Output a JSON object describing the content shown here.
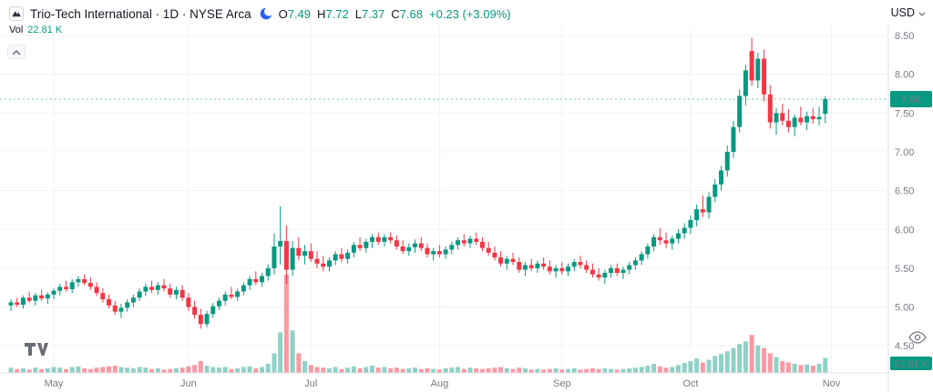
{
  "header": {
    "title": "Trio-Tech International · 1D · NYSE Arca",
    "ohlc": {
      "o_label": "O",
      "o": "7.49",
      "h_label": "H",
      "h": "7.72",
      "l_label": "L",
      "l": "7.37",
      "c_label": "C",
      "c": "7.68",
      "change": "+0.23 (+3.09%)"
    },
    "currency": "USD",
    "volume_label": "Vol",
    "volume_value": "22.81 K"
  },
  "icons": {
    "symbol_logo": "mountain-logo-icon",
    "market_status": "moon-icon",
    "currency_chevron": "chevron-down-icon",
    "collapse": "chevron-up-icon",
    "watermark": "tradingview-logo",
    "pane_toggle": "eye-icon"
  },
  "chart_data": {
    "type": "candlestick",
    "title": "Trio-Tech International",
    "interval": "1D",
    "exchange": "NYSE Arca",
    "currency": "USD",
    "last_price": 7.68,
    "last_price_label": "7.68",
    "last_volume_label": "22.81 K",
    "price_axis": {
      "min": 4.5,
      "max": 8.5,
      "ticks": [
        "8.50",
        "8.00",
        "7.50",
        "7.00",
        "6.50",
        "6.00",
        "5.50",
        "5.00",
        "4.50"
      ]
    },
    "time_axis": {
      "months": [
        {
          "label": "May",
          "index": 7
        },
        {
          "label": "Jun",
          "index": 29
        },
        {
          "label": "Jul",
          "index": 49
        },
        {
          "label": "Aug",
          "index": 70
        },
        {
          "label": "Sep",
          "index": 90
        },
        {
          "label": "Oct",
          "index": 111
        },
        {
          "label": "Nov",
          "index": 134
        }
      ]
    },
    "colors": {
      "up": "#089981",
      "down": "#f23645",
      "vol_up": "rgba(8,153,129,0.45)",
      "vol_down": "rgba(242,54,69,0.5)",
      "grid": "#f2f3f5",
      "axis": "#e0e3eb",
      "tick_text": "#787b86"
    },
    "candles": [
      [
        5.02,
        5.1,
        4.95,
        5.06,
        8
      ],
      [
        5.06,
        5.12,
        5.0,
        5.03,
        6
      ],
      [
        5.03,
        5.15,
        4.98,
        5.12,
        7
      ],
      [
        5.12,
        5.2,
        5.05,
        5.08,
        5
      ],
      [
        5.08,
        5.18,
        5.02,
        5.15,
        8
      ],
      [
        5.15,
        5.22,
        5.08,
        5.11,
        6
      ],
      [
        5.11,
        5.19,
        5.04,
        5.16,
        7
      ],
      [
        5.16,
        5.24,
        5.1,
        5.21,
        9
      ],
      [
        5.21,
        5.3,
        5.15,
        5.26,
        8
      ],
      [
        5.26,
        5.34,
        5.2,
        5.23,
        6
      ],
      [
        5.23,
        5.36,
        5.18,
        5.32,
        9
      ],
      [
        5.32,
        5.4,
        5.26,
        5.36,
        10
      ],
      [
        5.36,
        5.42,
        5.28,
        5.31,
        7
      ],
      [
        5.31,
        5.38,
        5.22,
        5.26,
        6
      ],
      [
        5.26,
        5.32,
        5.14,
        5.18,
        8
      ],
      [
        5.18,
        5.24,
        5.06,
        5.1,
        9
      ],
      [
        5.1,
        5.16,
        4.98,
        5.02,
        10
      ],
      [
        5.02,
        5.08,
        4.9,
        4.94,
        11
      ],
      [
        4.94,
        5.04,
        4.86,
        4.99,
        9
      ],
      [
        4.99,
        5.1,
        4.94,
        5.06,
        8
      ],
      [
        5.06,
        5.16,
        5.0,
        5.12,
        7
      ],
      [
        5.12,
        5.24,
        5.08,
        5.2,
        9
      ],
      [
        5.2,
        5.3,
        5.14,
        5.26,
        8
      ],
      [
        5.26,
        5.34,
        5.18,
        5.22,
        6
      ],
      [
        5.22,
        5.32,
        5.16,
        5.28,
        7
      ],
      [
        5.28,
        5.36,
        5.2,
        5.24,
        5
      ],
      [
        5.24,
        5.3,
        5.12,
        5.16,
        6
      ],
      [
        5.16,
        5.26,
        5.1,
        5.22,
        7
      ],
      [
        5.22,
        5.28,
        5.08,
        5.12,
        8
      ],
      [
        5.12,
        5.18,
        4.95,
        5.0,
        10
      ],
      [
        5.0,
        5.08,
        4.85,
        4.9,
        12
      ],
      [
        4.9,
        4.98,
        4.72,
        4.78,
        18
      ],
      [
        4.78,
        4.95,
        4.74,
        4.91,
        11
      ],
      [
        4.91,
        5.05,
        4.86,
        5.01,
        9
      ],
      [
        5.01,
        5.12,
        4.96,
        5.08,
        8
      ],
      [
        5.08,
        5.2,
        5.02,
        5.16,
        9
      ],
      [
        5.16,
        5.26,
        5.1,
        5.13,
        6
      ],
      [
        5.13,
        5.24,
        5.08,
        5.2,
        7
      ],
      [
        5.2,
        5.32,
        5.15,
        5.28,
        9
      ],
      [
        5.28,
        5.4,
        5.22,
        5.36,
        10
      ],
      [
        5.36,
        5.46,
        5.28,
        5.32,
        7
      ],
      [
        5.32,
        5.44,
        5.26,
        5.4,
        9
      ],
      [
        5.4,
        5.55,
        5.34,
        5.5,
        14
      ],
      [
        5.5,
        5.95,
        5.42,
        5.78,
        30
      ],
      [
        5.78,
        6.3,
        5.55,
        5.85,
        62
      ],
      [
        5.85,
        6.05,
        5.3,
        5.48,
        150
      ],
      [
        5.48,
        5.85,
        5.4,
        5.76,
        65
      ],
      [
        5.76,
        5.9,
        5.6,
        5.66,
        30
      ],
      [
        5.66,
        5.8,
        5.55,
        5.72,
        18
      ],
      [
        5.72,
        5.82,
        5.58,
        5.62,
        12
      ],
      [
        5.62,
        5.72,
        5.5,
        5.56,
        9
      ],
      [
        5.56,
        5.66,
        5.46,
        5.52,
        8
      ],
      [
        5.52,
        5.64,
        5.46,
        5.6,
        7
      ],
      [
        5.6,
        5.72,
        5.54,
        5.68,
        9
      ],
      [
        5.68,
        5.76,
        5.58,
        5.62,
        6
      ],
      [
        5.62,
        5.74,
        5.56,
        5.7,
        8
      ],
      [
        5.7,
        5.84,
        5.64,
        5.8,
        10
      ],
      [
        5.8,
        5.9,
        5.72,
        5.76,
        7
      ],
      [
        5.76,
        5.88,
        5.7,
        5.84,
        9
      ],
      [
        5.84,
        5.94,
        5.76,
        5.9,
        11
      ],
      [
        5.9,
        5.96,
        5.8,
        5.84,
        8
      ],
      [
        5.84,
        5.94,
        5.78,
        5.9,
        9
      ],
      [
        5.9,
        5.96,
        5.82,
        5.86,
        7
      ],
      [
        5.86,
        5.92,
        5.74,
        5.78,
        8
      ],
      [
        5.78,
        5.86,
        5.68,
        5.72,
        6
      ],
      [
        5.72,
        5.82,
        5.66,
        5.77,
        7
      ],
      [
        5.77,
        5.87,
        5.7,
        5.82,
        8
      ],
      [
        5.82,
        5.9,
        5.72,
        5.76,
        6
      ],
      [
        5.76,
        5.82,
        5.64,
        5.68,
        7
      ],
      [
        5.68,
        5.76,
        5.6,
        5.72,
        6
      ],
      [
        5.72,
        5.8,
        5.64,
        5.68,
        5
      ],
      [
        5.68,
        5.78,
        5.62,
        5.74,
        7
      ],
      [
        5.74,
        5.84,
        5.68,
        5.8,
        8
      ],
      [
        5.8,
        5.9,
        5.74,
        5.86,
        9
      ],
      [
        5.86,
        5.94,
        5.78,
        5.82,
        6
      ],
      [
        5.82,
        5.92,
        5.76,
        5.88,
        8
      ],
      [
        5.88,
        5.96,
        5.8,
        5.84,
        7
      ],
      [
        5.84,
        5.9,
        5.72,
        5.76,
        6
      ],
      [
        5.76,
        5.84,
        5.66,
        5.7,
        7
      ],
      [
        5.7,
        5.78,
        5.6,
        5.64,
        8
      ],
      [
        5.64,
        5.72,
        5.52,
        5.56,
        9
      ],
      [
        5.56,
        5.66,
        5.48,
        5.62,
        7
      ],
      [
        5.62,
        5.7,
        5.54,
        5.58,
        6
      ],
      [
        5.58,
        5.64,
        5.44,
        5.48,
        8
      ],
      [
        5.48,
        5.58,
        5.4,
        5.54,
        7
      ],
      [
        5.54,
        5.62,
        5.46,
        5.5,
        5
      ],
      [
        5.5,
        5.6,
        5.44,
        5.56,
        6
      ],
      [
        5.56,
        5.64,
        5.48,
        5.52,
        5
      ],
      [
        5.52,
        5.6,
        5.42,
        5.46,
        6
      ],
      [
        5.46,
        5.54,
        5.38,
        5.5,
        7
      ],
      [
        5.5,
        5.58,
        5.42,
        5.46,
        5
      ],
      [
        5.46,
        5.56,
        5.4,
        5.52,
        6
      ],
      [
        5.52,
        5.62,
        5.46,
        5.58,
        7
      ],
      [
        5.58,
        5.66,
        5.5,
        5.54,
        5
      ],
      [
        5.54,
        5.6,
        5.44,
        5.48,
        6
      ],
      [
        5.48,
        5.56,
        5.38,
        5.42,
        7
      ],
      [
        5.42,
        5.5,
        5.34,
        5.38,
        6
      ],
      [
        5.38,
        5.48,
        5.3,
        5.44,
        7
      ],
      [
        5.44,
        5.54,
        5.38,
        5.5,
        6
      ],
      [
        5.5,
        5.56,
        5.4,
        5.44,
        5
      ],
      [
        5.44,
        5.52,
        5.36,
        5.48,
        6
      ],
      [
        5.48,
        5.58,
        5.42,
        5.54,
        7
      ],
      [
        5.54,
        5.64,
        5.48,
        5.6,
        8
      ],
      [
        5.6,
        5.72,
        5.54,
        5.68,
        9
      ],
      [
        5.68,
        5.82,
        5.62,
        5.78,
        11
      ],
      [
        5.78,
        5.94,
        5.72,
        5.9,
        14
      ],
      [
        5.9,
        6.02,
        5.8,
        5.86,
        10
      ],
      [
        5.86,
        5.96,
        5.76,
        5.82,
        8
      ],
      [
        5.82,
        5.92,
        5.74,
        5.88,
        9
      ],
      [
        5.88,
        6.0,
        5.82,
        5.95,
        12
      ],
      [
        5.95,
        6.08,
        5.88,
        6.02,
        15
      ],
      [
        6.02,
        6.18,
        5.94,
        6.12,
        18
      ],
      [
        6.12,
        6.32,
        6.04,
        6.26,
        22
      ],
      [
        6.26,
        6.44,
        6.16,
        6.22,
        16
      ],
      [
        6.22,
        6.48,
        6.14,
        6.42,
        20
      ],
      [
        6.42,
        6.65,
        6.35,
        6.58,
        26
      ],
      [
        6.58,
        6.82,
        6.5,
        6.76,
        29
      ],
      [
        6.76,
        7.08,
        6.68,
        7.0,
        33
      ],
      [
        7.0,
        7.4,
        6.92,
        7.32,
        38
      ],
      [
        7.32,
        7.8,
        7.25,
        7.72,
        44
      ],
      [
        7.72,
        8.12,
        7.6,
        8.05,
        48
      ],
      [
        8.3,
        8.47,
        7.85,
        7.92,
        58
      ],
      [
        7.92,
        8.28,
        7.82,
        8.2,
        42
      ],
      [
        8.2,
        8.32,
        7.65,
        7.74,
        38
      ],
      [
        7.74,
        7.86,
        7.3,
        7.38,
        30
      ],
      [
        7.38,
        7.56,
        7.22,
        7.5,
        24
      ],
      [
        7.5,
        7.62,
        7.34,
        7.4,
        18
      ],
      [
        7.4,
        7.55,
        7.25,
        7.32,
        16
      ],
      [
        7.32,
        7.48,
        7.2,
        7.44,
        14
      ],
      [
        7.44,
        7.58,
        7.34,
        7.38,
        12
      ],
      [
        7.38,
        7.52,
        7.28,
        7.46,
        13
      ],
      [
        7.46,
        7.56,
        7.36,
        7.42,
        11
      ],
      [
        7.42,
        7.58,
        7.34,
        7.45,
        14
      ],
      [
        7.49,
        7.72,
        7.37,
        7.68,
        22.81
      ]
    ]
  }
}
